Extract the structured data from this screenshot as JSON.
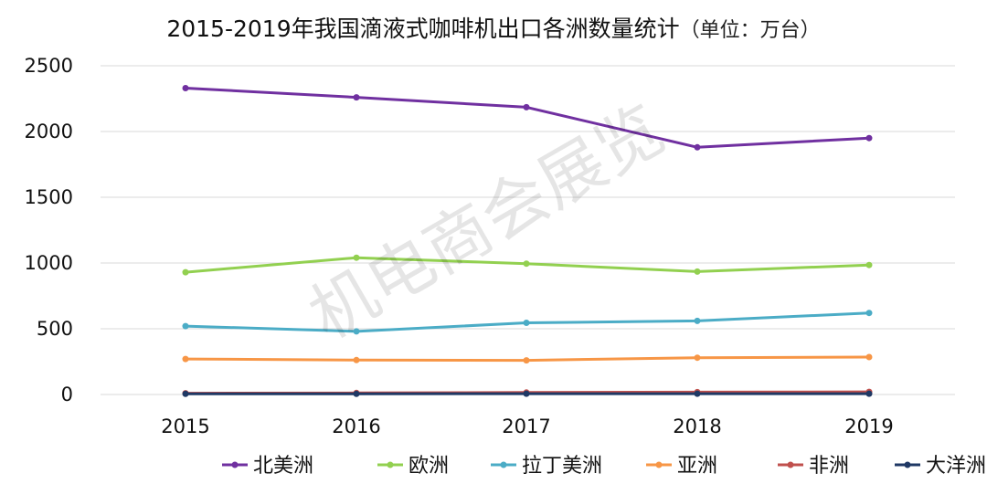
{
  "chart_data": {
    "type": "line",
    "title": "2015-2019年我国滴液式咖啡机出口各洲数量统计",
    "unit": "（单位：万台）",
    "x": [
      "2015",
      "2016",
      "2017",
      "2018",
      "2019"
    ],
    "ylim": [
      0,
      2500
    ],
    "yticks": [
      "0",
      "500",
      "1000",
      "1500",
      "2000",
      "2500"
    ],
    "grid": true,
    "legend_position": "bottom",
    "series": [
      {
        "name": "北美洲",
        "color": "#7030a0",
        "values": [
          2330,
          2260,
          2185,
          1880,
          1950
        ]
      },
      {
        "name": "欧洲",
        "color": "#92d050",
        "values": [
          930,
          1040,
          995,
          935,
          985
        ]
      },
      {
        "name": "拉丁美洲",
        "color": "#4bacc6",
        "values": [
          520,
          480,
          545,
          560,
          620
        ]
      },
      {
        "name": "亚洲",
        "color": "#f79646",
        "values": [
          270,
          262,
          260,
          280,
          285
        ]
      },
      {
        "name": "非洲",
        "color": "#c0504d",
        "values": [
          10,
          12,
          15,
          18,
          20
        ]
      },
      {
        "name": "大洋洲",
        "color": "#1f3864",
        "values": [
          5,
          5,
          6,
          6,
          6
        ]
      }
    ],
    "watermark": "机电商会展览"
  }
}
